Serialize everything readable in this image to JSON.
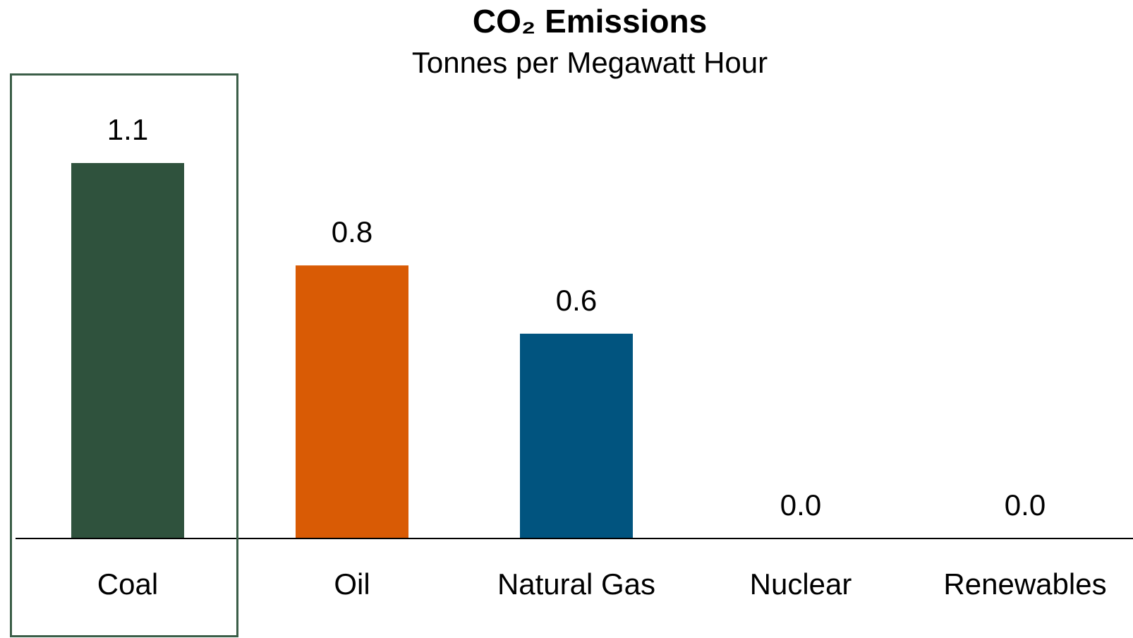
{
  "chart_data": {
    "type": "bar",
    "title": "CO₂ Emissions",
    "subtitle": "Tonnes per Megawatt Hour",
    "categories": [
      "Coal",
      "Oil",
      "Natural Gas",
      "Nuclear",
      "Renewables"
    ],
    "values": [
      1.1,
      0.8,
      0.6,
      0.0,
      0.0
    ],
    "value_labels": [
      "1.1",
      "0.8",
      "0.6",
      "0.0",
      "0.0"
    ],
    "colors": [
      "#2f523d",
      "#d95b05",
      "#01547f",
      "#7f7f7f",
      "#7f7f7f"
    ],
    "ylim": [
      0,
      1.1
    ],
    "highlight_color": "#3b5e48"
  }
}
